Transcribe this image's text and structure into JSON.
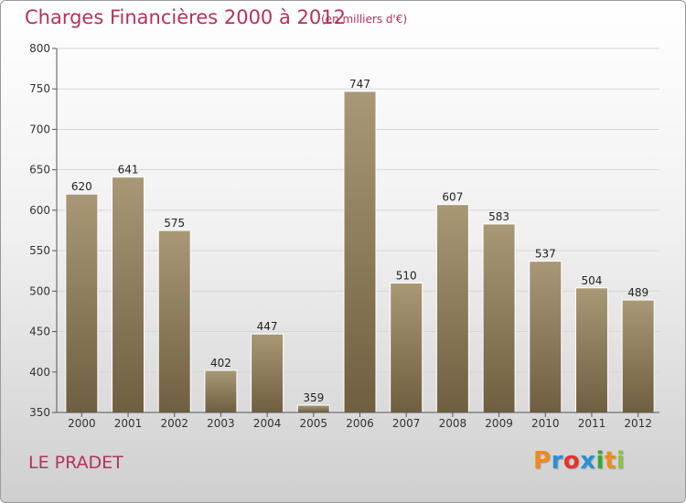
{
  "title": "Charges Financières 2000 à 2012",
  "subtitle": "(en milliers d'€)",
  "location": "LE PRADET",
  "logo": {
    "text": "Proxiti",
    "letters": [
      "P",
      "r",
      "o",
      "x",
      "i",
      "t",
      "i"
    ],
    "colors": [
      "#f08a1c",
      "#2b8fd6",
      "#e6322d",
      "#2b8fd6",
      "#3aa935",
      "#f08a1c",
      "#8bc43f"
    ]
  },
  "colors": {
    "title": "#b5325b",
    "bar_top": "#a99876",
    "bar_bottom": "#6f5f40",
    "grid": "#d6d6d6"
  },
  "chart_data": {
    "type": "bar",
    "title": "Charges Financières 2000 à 2012",
    "subtitle": "(en milliers d'€)",
    "categories": [
      "2000",
      "2001",
      "2002",
      "2003",
      "2004",
      "2005",
      "2006",
      "2007",
      "2008",
      "2009",
      "2010",
      "2011",
      "2012"
    ],
    "values": [
      620,
      641,
      575,
      402,
      447,
      359,
      747,
      510,
      607,
      583,
      537,
      504,
      489
    ],
    "ylim": [
      350,
      800
    ],
    "yticks": [
      350,
      400,
      450,
      500,
      550,
      600,
      650,
      700,
      750,
      800
    ],
    "grid": true,
    "xlabel": "",
    "ylabel": ""
  }
}
